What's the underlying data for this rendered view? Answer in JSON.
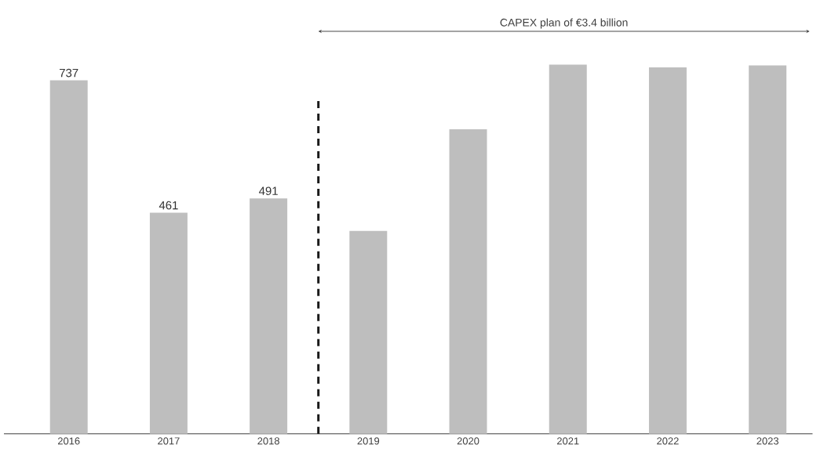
{
  "chart_data": {
    "type": "bar",
    "categories": [
      "2016",
      "2017",
      "2018",
      "2019",
      "2020",
      "2021",
      "2022",
      "2023"
    ],
    "values": [
      737,
      461,
      491,
      423,
      635,
      770,
      764,
      768
    ],
    "color": "#bebebe",
    "value_labels": [
      "737",
      "461",
      "491",
      null,
      null,
      null,
      null,
      null
    ],
    "annotations": [
      "CAPEX plan of €3.4 billion"
    ]
  }
}
